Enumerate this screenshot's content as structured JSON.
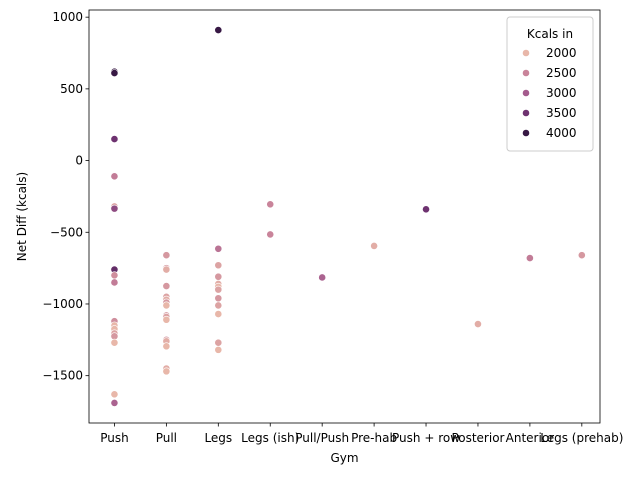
{
  "chart_data": {
    "type": "scatter",
    "xlabel": "Gym",
    "ylabel": "Net Diff (kcals)",
    "categories": [
      "Push",
      "Pull",
      "Legs",
      "Legs (ish)",
      "Pull/Push",
      "Pre-hab",
      "Push + row",
      "Posterior",
      "Anterior",
      "Legs (prehab)"
    ],
    "ylim": [
      -1830,
      1050
    ],
    "yticks": [
      -1500,
      -1000,
      -500,
      0,
      500,
      1000
    ],
    "legend": {
      "title": "Kcals in",
      "placement": "top-right",
      "entries": [
        {
          "label": "2000",
          "value": 2000
        },
        {
          "label": "2500",
          "value": 2500
        },
        {
          "label": "3000",
          "value": 3000
        },
        {
          "label": "3500",
          "value": 3500
        },
        {
          "label": "4000",
          "value": 4000
        }
      ]
    },
    "points": [
      {
        "x": "Push",
        "y": 620,
        "kcals": 4100
      },
      {
        "x": "Push",
        "y": 610,
        "kcals": 4200
      },
      {
        "x": "Push",
        "y": 150,
        "kcals": 3500
      },
      {
        "x": "Push",
        "y": -110,
        "kcals": 2600
      },
      {
        "x": "Push",
        "y": -320,
        "kcals": 2200
      },
      {
        "x": "Push",
        "y": -335,
        "kcals": 3200
      },
      {
        "x": "Push",
        "y": -760,
        "kcals": 3600
      },
      {
        "x": "Push",
        "y": -800,
        "kcals": 2400
      },
      {
        "x": "Push",
        "y": -850,
        "kcals": 2600
      },
      {
        "x": "Push",
        "y": -1120,
        "kcals": 2400
      },
      {
        "x": "Push",
        "y": -1150,
        "kcals": 2000
      },
      {
        "x": "Push",
        "y": -1175,
        "kcals": 1900
      },
      {
        "x": "Push",
        "y": -1205,
        "kcals": 2200
      },
      {
        "x": "Push",
        "y": -1225,
        "kcals": 2300
      },
      {
        "x": "Push",
        "y": -1270,
        "kcals": 2000
      },
      {
        "x": "Push",
        "y": -1630,
        "kcals": 1900
      },
      {
        "x": "Push",
        "y": -1690,
        "kcals": 2900
      },
      {
        "x": "Pull",
        "y": -660,
        "kcals": 2300
      },
      {
        "x": "Pull",
        "y": -750,
        "kcals": 2300
      },
      {
        "x": "Pull",
        "y": -760,
        "kcals": 2100
      },
      {
        "x": "Pull",
        "y": -875,
        "kcals": 2300
      },
      {
        "x": "Pull",
        "y": -950,
        "kcals": 2200
      },
      {
        "x": "Pull",
        "y": -970,
        "kcals": 2100
      },
      {
        "x": "Pull",
        "y": -990,
        "kcals": 2300
      },
      {
        "x": "Pull",
        "y": -1010,
        "kcals": 2000
      },
      {
        "x": "Pull",
        "y": -1080,
        "kcals": 2300
      },
      {
        "x": "Pull",
        "y": -1090,
        "kcals": 2200
      },
      {
        "x": "Pull",
        "y": -1110,
        "kcals": 2000
      },
      {
        "x": "Pull",
        "y": -1250,
        "kcals": 2300
      },
      {
        "x": "Pull",
        "y": -1260,
        "kcals": 2100
      },
      {
        "x": "Pull",
        "y": -1295,
        "kcals": 1900
      },
      {
        "x": "Pull",
        "y": -1450,
        "kcals": 2100
      },
      {
        "x": "Pull",
        "y": -1470,
        "kcals": 1900
      },
      {
        "x": "Legs",
        "y": 910,
        "kcals": 4100
      },
      {
        "x": "Legs",
        "y": -615,
        "kcals": 2700
      },
      {
        "x": "Legs",
        "y": -730,
        "kcals": 2200
      },
      {
        "x": "Legs",
        "y": -810,
        "kcals": 2300
      },
      {
        "x": "Legs",
        "y": -860,
        "kcals": 2100
      },
      {
        "x": "Legs",
        "y": -880,
        "kcals": 2000
      },
      {
        "x": "Legs",
        "y": -900,
        "kcals": 2200
      },
      {
        "x": "Legs",
        "y": -960,
        "kcals": 2300
      },
      {
        "x": "Legs",
        "y": -1010,
        "kcals": 2200
      },
      {
        "x": "Legs",
        "y": -1070,
        "kcals": 2000
      },
      {
        "x": "Legs",
        "y": -1270,
        "kcals": 2200
      },
      {
        "x": "Legs",
        "y": -1320,
        "kcals": 2000
      },
      {
        "x": "Legs (ish)",
        "y": -305,
        "kcals": 2500
      },
      {
        "x": "Legs (ish)",
        "y": -515,
        "kcals": 2500
      },
      {
        "x": "Pull/Push",
        "y": -815,
        "kcals": 2900
      },
      {
        "x": "Pre-hab",
        "y": -595,
        "kcals": 2100
      },
      {
        "x": "Push + row",
        "y": -340,
        "kcals": 3500
      },
      {
        "x": "Posterior",
        "y": -1140,
        "kcals": 2100
      },
      {
        "x": "Anterior",
        "y": -680,
        "kcals": 2600
      },
      {
        "x": "Legs (prehab)",
        "y": -660,
        "kcals": 2300
      }
    ]
  }
}
